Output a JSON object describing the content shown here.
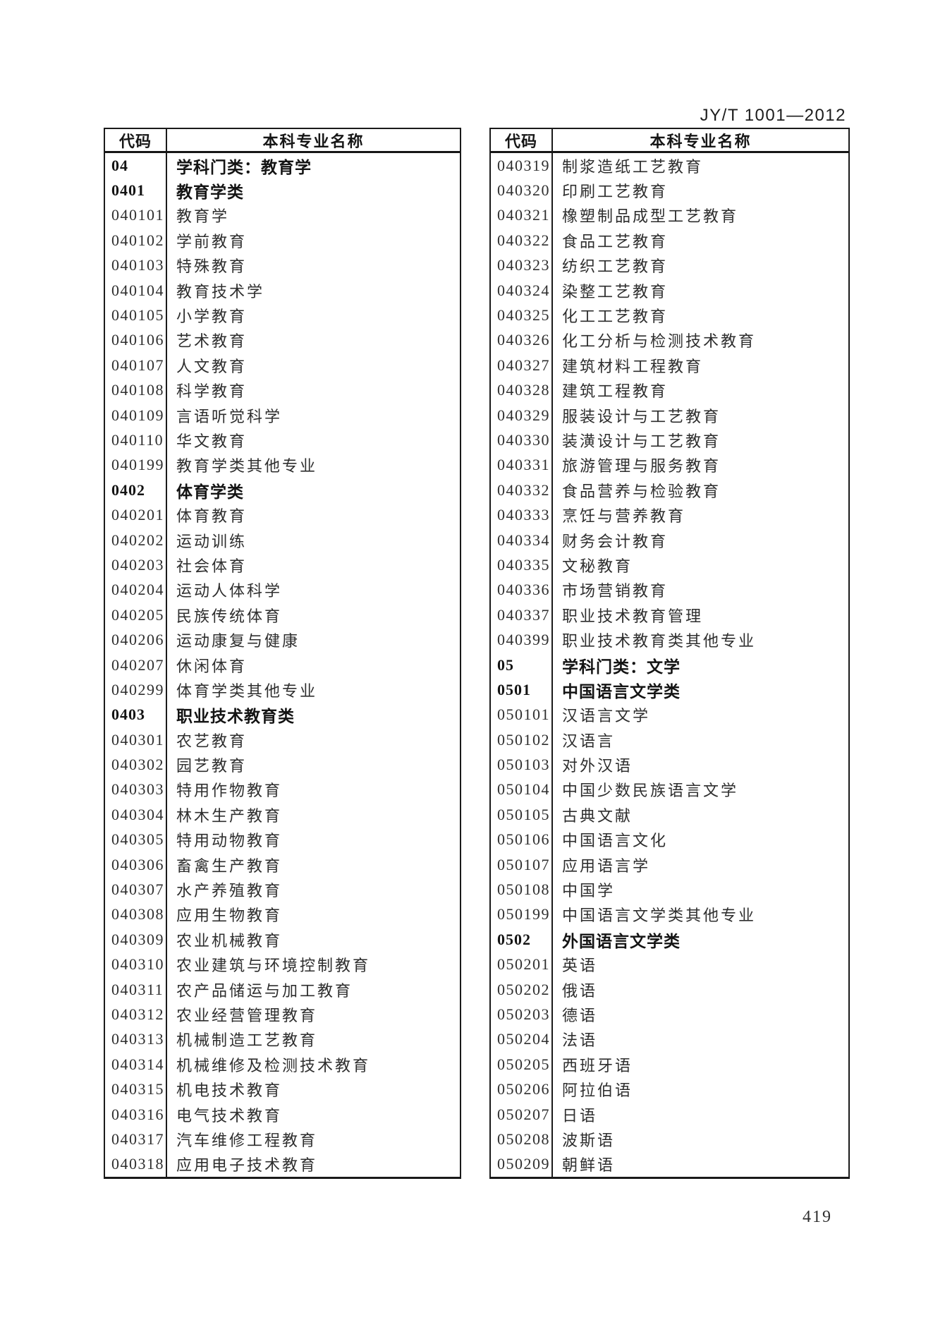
{
  "page": {
    "standard_number": "JY/T 1001—2012",
    "page_number": "419"
  },
  "table_header": {
    "code_label": "代码",
    "name_label": "本科专业名称"
  },
  "left_table": {
    "rows": [
      {
        "code": "04",
        "name": "学科门类：教育学",
        "bold": true
      },
      {
        "code": "0401",
        "name": "教育学类",
        "bold": true
      },
      {
        "code": "040101",
        "name": "教育学"
      },
      {
        "code": "040102",
        "name": "学前教育"
      },
      {
        "code": "040103",
        "name": "特殊教育"
      },
      {
        "code": "040104",
        "name": "教育技术学"
      },
      {
        "code": "040105",
        "name": "小学教育"
      },
      {
        "code": "040106",
        "name": "艺术教育"
      },
      {
        "code": "040107",
        "name": "人文教育"
      },
      {
        "code": "040108",
        "name": "科学教育"
      },
      {
        "code": "040109",
        "name": "言语听觉科学"
      },
      {
        "code": "040110",
        "name": "华文教育"
      },
      {
        "code": "040199",
        "name": "教育学类其他专业"
      },
      {
        "code": "0402",
        "name": "体育学类",
        "bold": true
      },
      {
        "code": "040201",
        "name": "体育教育"
      },
      {
        "code": "040202",
        "name": "运动训练"
      },
      {
        "code": "040203",
        "name": "社会体育"
      },
      {
        "code": "040204",
        "name": "运动人体科学"
      },
      {
        "code": "040205",
        "name": "民族传统体育"
      },
      {
        "code": "040206",
        "name": "运动康复与健康"
      },
      {
        "code": "040207",
        "name": "休闲体育"
      },
      {
        "code": "040299",
        "name": "体育学类其他专业"
      },
      {
        "code": "0403",
        "name": "职业技术教育类",
        "bold": true
      },
      {
        "code": "040301",
        "name": "农艺教育"
      },
      {
        "code": "040302",
        "name": "园艺教育"
      },
      {
        "code": "040303",
        "name": "特用作物教育"
      },
      {
        "code": "040304",
        "name": "林木生产教育"
      },
      {
        "code": "040305",
        "name": "特用动物教育"
      },
      {
        "code": "040306",
        "name": "畜禽生产教育"
      },
      {
        "code": "040307",
        "name": "水产养殖教育"
      },
      {
        "code": "040308",
        "name": "应用生物教育"
      },
      {
        "code": "040309",
        "name": "农业机械教育"
      },
      {
        "code": "040310",
        "name": "农业建筑与环境控制教育"
      },
      {
        "code": "040311",
        "name": "农产品储运与加工教育"
      },
      {
        "code": "040312",
        "name": "农业经营管理教育"
      },
      {
        "code": "040313",
        "name": "机械制造工艺教育"
      },
      {
        "code": "040314",
        "name": "机械维修及检测技术教育"
      },
      {
        "code": "040315",
        "name": "机电技术教育"
      },
      {
        "code": "040316",
        "name": "电气技术教育"
      },
      {
        "code": "040317",
        "name": "汽车维修工程教育"
      },
      {
        "code": "040318",
        "name": "应用电子技术教育"
      }
    ]
  },
  "right_table": {
    "rows": [
      {
        "code": "040319",
        "name": "制浆造纸工艺教育"
      },
      {
        "code": "040320",
        "name": "印刷工艺教育"
      },
      {
        "code": "040321",
        "name": "橡塑制品成型工艺教育"
      },
      {
        "code": "040322",
        "name": "食品工艺教育"
      },
      {
        "code": "040323",
        "name": "纺织工艺教育"
      },
      {
        "code": "040324",
        "name": "染整工艺教育"
      },
      {
        "code": "040325",
        "name": "化工工艺教育"
      },
      {
        "code": "040326",
        "name": "化工分析与检测技术教育"
      },
      {
        "code": "040327",
        "name": "建筑材料工程教育"
      },
      {
        "code": "040328",
        "name": "建筑工程教育"
      },
      {
        "code": "040329",
        "name": "服装设计与工艺教育"
      },
      {
        "code": "040330",
        "name": "装潢设计与工艺教育"
      },
      {
        "code": "040331",
        "name": "旅游管理与服务教育"
      },
      {
        "code": "040332",
        "name": "食品营养与检验教育"
      },
      {
        "code": "040333",
        "name": "烹饪与营养教育"
      },
      {
        "code": "040334",
        "name": "财务会计教育"
      },
      {
        "code": "040335",
        "name": "文秘教育"
      },
      {
        "code": "040336",
        "name": "市场营销教育"
      },
      {
        "code": "040337",
        "name": "职业技术教育管理"
      },
      {
        "code": "040399",
        "name": "职业技术教育类其他专业"
      },
      {
        "code": "05",
        "name": "学科门类：文学",
        "bold": true
      },
      {
        "code": "0501",
        "name": "中国语言文学类",
        "bold": true
      },
      {
        "code": "050101",
        "name": "汉语言文学"
      },
      {
        "code": "050102",
        "name": "汉语言"
      },
      {
        "code": "050103",
        "name": "对外汉语"
      },
      {
        "code": "050104",
        "name": "中国少数民族语言文学"
      },
      {
        "code": "050105",
        "name": "古典文献"
      },
      {
        "code": "050106",
        "name": "中国语言文化"
      },
      {
        "code": "050107",
        "name": "应用语言学"
      },
      {
        "code": "050108",
        "name": "中国学"
      },
      {
        "code": "050199",
        "name": "中国语言文学类其他专业"
      },
      {
        "code": "0502",
        "name": "外国语言文学类",
        "bold": true
      },
      {
        "code": "050201",
        "name": "英语"
      },
      {
        "code": "050202",
        "name": "俄语"
      },
      {
        "code": "050203",
        "name": "德语"
      },
      {
        "code": "050204",
        "name": "法语"
      },
      {
        "code": "050205",
        "name": "西班牙语"
      },
      {
        "code": "050206",
        "name": "阿拉伯语"
      },
      {
        "code": "050207",
        "name": "日语"
      },
      {
        "code": "050208",
        "name": "波斯语"
      },
      {
        "code": "050209",
        "name": "朝鲜语"
      }
    ]
  }
}
